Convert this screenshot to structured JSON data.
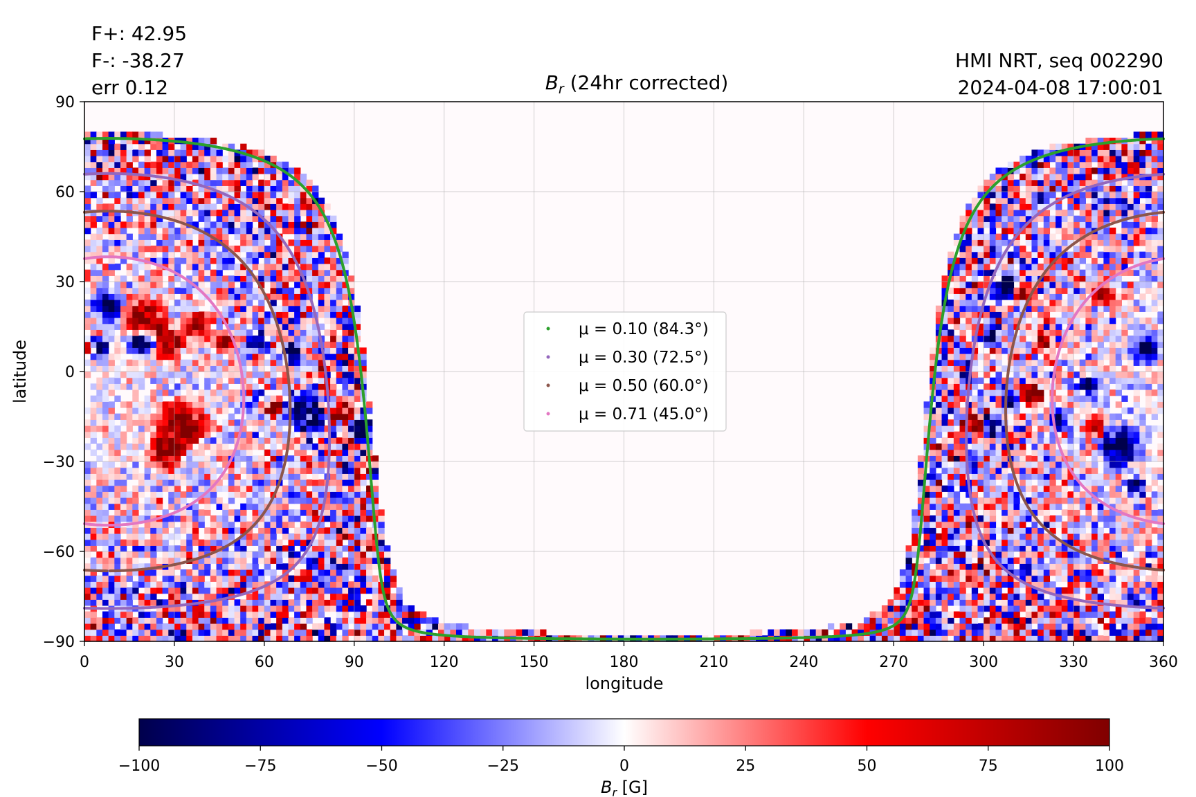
{
  "header": {
    "flux_pos": "F+: 42.95",
    "flux_neg": "F-: -38.27",
    "err": "err 0.12",
    "title_main": "B",
    "title_sub": "r",
    "title_rest": " (24hr corrected)",
    "source": "HMI NRT, seq 002290",
    "timestamp": "2024-04-08 17:00:01"
  },
  "chart_data": {
    "type": "heatmap",
    "xlabel": "longitude",
    "ylabel": "latitude",
    "xlim": [
      0,
      360
    ],
    "ylim": [
      -90,
      90
    ],
    "x_ticks": [
      0,
      30,
      60,
      90,
      120,
      150,
      180,
      210,
      240,
      270,
      300,
      330,
      360
    ],
    "y_ticks": [
      -90,
      -60,
      -30,
      0,
      30,
      60,
      90
    ],
    "grid": true,
    "disk_center_longitude": 8,
    "observer_latitude": -6.5,
    "legend_position": "center",
    "contours": [
      {
        "mu": 0.1,
        "label": "μ = 0.10 (84.3°)",
        "color": "#2ca02c"
      },
      {
        "mu": 0.3,
        "label": "μ = 0.30 (72.5°)",
        "color": "#9467bd"
      },
      {
        "mu": 0.5,
        "label": "μ = 0.50 (60.0°)",
        "color": "#8c564b"
      },
      {
        "mu": 0.71,
        "label": "μ = 0.71 (45.0°)",
        "color": "#e377c2"
      }
    ],
    "colorbar": {
      "label_main": "B",
      "label_sub": "r",
      "label_unit": " [G]",
      "range": [
        -100,
        100
      ],
      "ticks": [
        -100,
        -75,
        -50,
        -25,
        0,
        25,
        50,
        75,
        100
      ],
      "colormap": "seismic"
    },
    "magnetic_regions": [
      {
        "lon": 20,
        "lat": 18,
        "r": 6,
        "polarity": 1
      },
      {
        "lon": 28,
        "lat": 10,
        "r": 5,
        "polarity": 1
      },
      {
        "lon": 8,
        "lat": 22,
        "r": 4,
        "polarity": -1
      },
      {
        "lon": 5,
        "lat": 8,
        "r": 3,
        "polarity": -1
      },
      {
        "lon": 2,
        "lat": 8,
        "r": 2,
        "polarity": 1
      },
      {
        "lon": 19,
        "lat": 10,
        "r": 4,
        "polarity": -1
      },
      {
        "lon": 38,
        "lat": 15,
        "r": 4,
        "polarity": 1
      },
      {
        "lon": 33,
        "lat": -18,
        "r": 7,
        "polarity": 1
      },
      {
        "lon": 27,
        "lat": -27,
        "r": 5,
        "polarity": 1
      },
      {
        "lon": 47,
        "lat": 10,
        "r": 3,
        "polarity": 1
      },
      {
        "lon": 58,
        "lat": 10,
        "r": 3,
        "polarity": -1
      },
      {
        "lon": 70,
        "lat": 6,
        "r": 3,
        "polarity": -1
      },
      {
        "lon": 74,
        "lat": -14,
        "r": 6,
        "polarity": -1
      },
      {
        "lon": 86,
        "lat": -14,
        "r": 4,
        "polarity": 1
      },
      {
        "lon": 92,
        "lat": -18,
        "r": 3,
        "polarity": -1
      },
      {
        "lon": 63,
        "lat": -12,
        "r": 3,
        "polarity": 1
      },
      {
        "lon": 307,
        "lat": 28,
        "r": 4,
        "polarity": -1
      },
      {
        "lon": 313,
        "lat": 26,
        "r": 3,
        "polarity": 1
      },
      {
        "lon": 316,
        "lat": -8,
        "r": 4,
        "polarity": 1
      },
      {
        "lon": 310,
        "lat": -10,
        "r": 3,
        "polarity": -1
      },
      {
        "lon": 296,
        "lat": -18,
        "r": 4,
        "polarity": 1
      },
      {
        "lon": 303,
        "lat": -18,
        "r": 3,
        "polarity": -1
      },
      {
        "lon": 320,
        "lat": 10,
        "r": 3,
        "polarity": 1
      },
      {
        "lon": 303,
        "lat": 12,
        "r": 3,
        "polarity": -1
      },
      {
        "lon": 354,
        "lat": 8,
        "r": 4,
        "polarity": -1
      },
      {
        "lon": 335,
        "lat": -5,
        "r": 3,
        "polarity": -1
      },
      {
        "lon": 345,
        "lat": -25,
        "r": 6,
        "polarity": -1
      },
      {
        "lon": 338,
        "lat": -18,
        "r": 3,
        "polarity": 1
      },
      {
        "lon": 350,
        "lat": -38,
        "r": 3,
        "polarity": -1
      },
      {
        "lon": 325,
        "lat": -15,
        "r": 3,
        "polarity": -1
      },
      {
        "lon": 340,
        "lat": 25,
        "r": 3,
        "polarity": 1
      }
    ]
  }
}
